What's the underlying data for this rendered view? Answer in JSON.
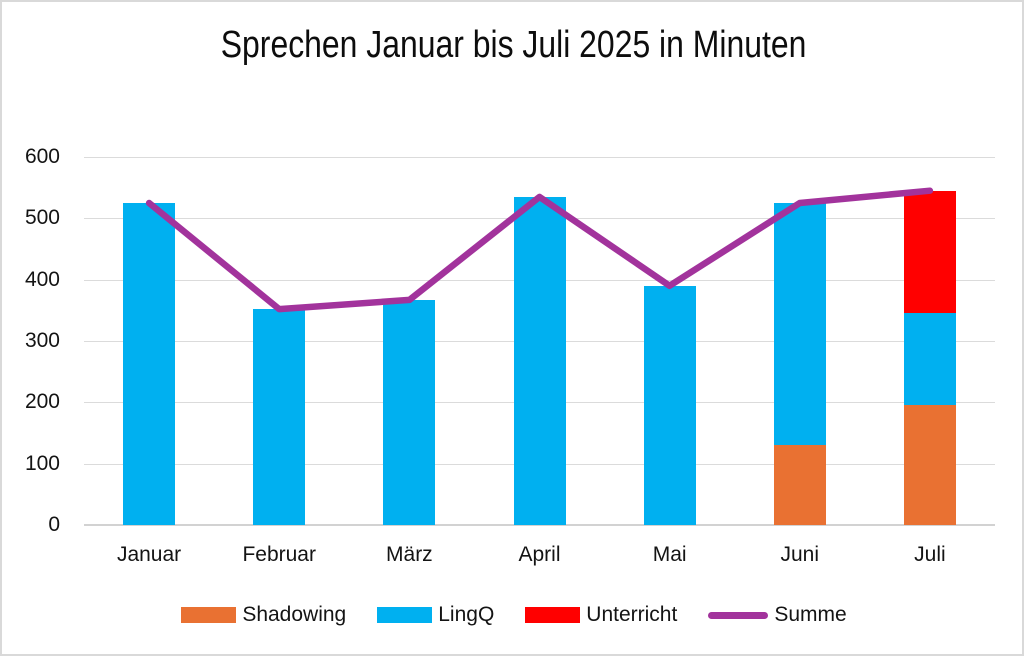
{
  "window": {
    "background": "#ffffff",
    "border_color": "#d9d9d9"
  },
  "chart_data": {
    "type": "bar",
    "subtype": "stacked-bars-with-line-overlay",
    "title": "Sprechen Januar bis Juli 2025 in Minuten",
    "categories": [
      "Januar",
      "Februar",
      "März",
      "April",
      "Mai",
      "Juni",
      "Juli"
    ],
    "series": [
      {
        "name": "Shadowing",
        "kind": "bar",
        "color": "#E97132",
        "values": [
          0,
          0,
          0,
          0,
          0,
          130,
          195
        ]
      },
      {
        "name": "LingQ",
        "kind": "bar",
        "color": "#00B0F0",
        "values": [
          525,
          352,
          367,
          535,
          390,
          395,
          150
        ]
      },
      {
        "name": "Unterricht",
        "kind": "bar",
        "color": "#FF0000",
        "values": [
          0,
          0,
          0,
          0,
          0,
          0,
          200
        ]
      },
      {
        "name": "Summe",
        "kind": "line",
        "color": "#A2339C",
        "values": [
          525,
          352,
          367,
          535,
          390,
          525,
          545
        ]
      }
    ],
    "xlabel": "",
    "ylabel": "",
    "ylim": [
      0,
      600
    ],
    "yticks": [
      0,
      100,
      200,
      300,
      400,
      500,
      600
    ],
    "grid": true,
    "gridline_color": "#dbdbdb",
    "legend_position": "bottom",
    "legend_order": [
      "Shadowing",
      "LingQ",
      "Unterricht",
      "Summe"
    ]
  }
}
